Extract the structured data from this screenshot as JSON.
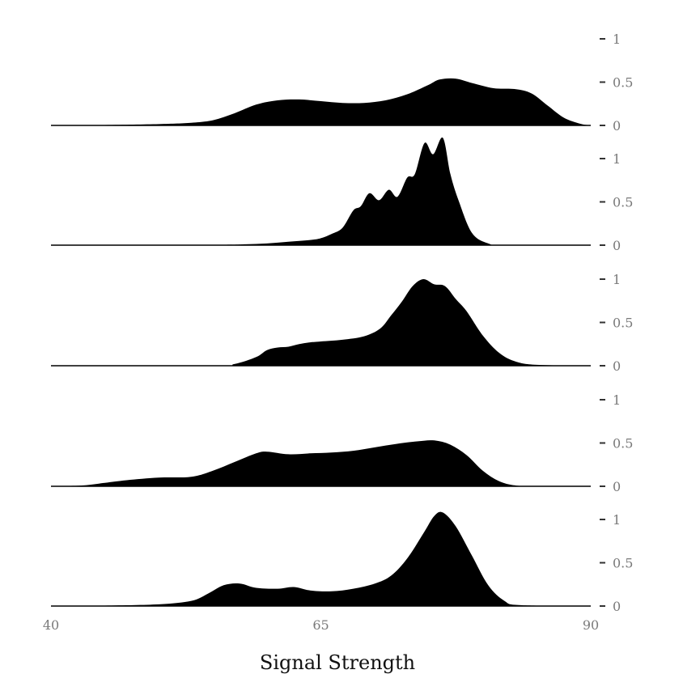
{
  "chart_data": {
    "type": "area",
    "subtype": "stacked-density-panels",
    "xlabel": "Signal Strength",
    "xlim": [
      40,
      90
    ],
    "x_ticks": [
      40,
      65,
      90
    ],
    "y_ticks": [
      0,
      0.5,
      1
    ],
    "ylim": [
      0,
      1.1
    ],
    "fill_color": "#000000",
    "tick_color": "#7a7a7a",
    "grid": false,
    "legend": "none",
    "panels": [
      {
        "points": [
          [
            40,
            0.0
          ],
          [
            45,
            0.005
          ],
          [
            50,
            0.015
          ],
          [
            53,
            0.03
          ],
          [
            55,
            0.06
          ],
          [
            57,
            0.14
          ],
          [
            59,
            0.24
          ],
          [
            61,
            0.29
          ],
          [
            63,
            0.3
          ],
          [
            65,
            0.28
          ],
          [
            67,
            0.26
          ],
          [
            69,
            0.26
          ],
          [
            71,
            0.29
          ],
          [
            73,
            0.36
          ],
          [
            75,
            0.47
          ],
          [
            76,
            0.53
          ],
          [
            77.5,
            0.54
          ],
          [
            79,
            0.49
          ],
          [
            81,
            0.43
          ],
          [
            83,
            0.42
          ],
          [
            84.5,
            0.37
          ],
          [
            86,
            0.23
          ],
          [
            87.5,
            0.09
          ],
          [
            89,
            0.02
          ],
          [
            90,
            0.0
          ]
        ]
      },
      {
        "points": [
          [
            40,
            0.0
          ],
          [
            50,
            0.005
          ],
          [
            56,
            0.005
          ],
          [
            58,
            0.01
          ],
          [
            60,
            0.02
          ],
          [
            62,
            0.04
          ],
          [
            64,
            0.06
          ],
          [
            65,
            0.08
          ],
          [
            66,
            0.13
          ],
          [
            67,
            0.2
          ],
          [
            68,
            0.4
          ],
          [
            68.7,
            0.45
          ],
          [
            69.5,
            0.6
          ],
          [
            70.4,
            0.52
          ],
          [
            71.3,
            0.64
          ],
          [
            72.1,
            0.56
          ],
          [
            73,
            0.78
          ],
          [
            73.7,
            0.82
          ],
          [
            74.6,
            1.18
          ],
          [
            75.4,
            1.05
          ],
          [
            76.3,
            1.24
          ],
          [
            77,
            0.82
          ],
          [
            77.8,
            0.5
          ],
          [
            79,
            0.14
          ],
          [
            80.5,
            0.02
          ],
          [
            82,
            0.0
          ],
          [
            90,
            0.0
          ]
        ]
      },
      {
        "points": [
          [
            40,
            0.0
          ],
          [
            55,
            0.0
          ],
          [
            57,
            0.02
          ],
          [
            59,
            0.1
          ],
          [
            60,
            0.18
          ],
          [
            61,
            0.21
          ],
          [
            62,
            0.22
          ],
          [
            63,
            0.25
          ],
          [
            64,
            0.27
          ],
          [
            65,
            0.28
          ],
          [
            67,
            0.3
          ],
          [
            69,
            0.34
          ],
          [
            70.5,
            0.43
          ],
          [
            71.5,
            0.58
          ],
          [
            72.5,
            0.74
          ],
          [
            73.5,
            0.92
          ],
          [
            74.5,
            1.0
          ],
          [
            75.5,
            0.94
          ],
          [
            76.5,
            0.92
          ],
          [
            77.5,
            0.77
          ],
          [
            78.5,
            0.63
          ],
          [
            80,
            0.35
          ],
          [
            81.5,
            0.15
          ],
          [
            83,
            0.05
          ],
          [
            85,
            0.01
          ],
          [
            90,
            0.0
          ]
        ]
      },
      {
        "points": [
          [
            40,
            0.0
          ],
          [
            43,
            0.01
          ],
          [
            45,
            0.04
          ],
          [
            47,
            0.07
          ],
          [
            50,
            0.1
          ],
          [
            53,
            0.11
          ],
          [
            55,
            0.18
          ],
          [
            57,
            0.28
          ],
          [
            59,
            0.38
          ],
          [
            60,
            0.4
          ],
          [
            62,
            0.37
          ],
          [
            64,
            0.38
          ],
          [
            66,
            0.39
          ],
          [
            68,
            0.41
          ],
          [
            70,
            0.45
          ],
          [
            72,
            0.49
          ],
          [
            74,
            0.52
          ],
          [
            75.5,
            0.53
          ],
          [
            77,
            0.48
          ],
          [
            78.5,
            0.36
          ],
          [
            80,
            0.18
          ],
          [
            81.5,
            0.06
          ],
          [
            83,
            0.01
          ],
          [
            85,
            0.0
          ],
          [
            90,
            0.0
          ]
        ]
      },
      {
        "points": [
          [
            40,
            0.0
          ],
          [
            45,
            0.005
          ],
          [
            50,
            0.02
          ],
          [
            53,
            0.06
          ],
          [
            54.5,
            0.14
          ],
          [
            56,
            0.24
          ],
          [
            57.5,
            0.26
          ],
          [
            59,
            0.21
          ],
          [
            61,
            0.2
          ],
          [
            62.5,
            0.22
          ],
          [
            64,
            0.18
          ],
          [
            66,
            0.17
          ],
          [
            68,
            0.2
          ],
          [
            70,
            0.26
          ],
          [
            71.5,
            0.35
          ],
          [
            73,
            0.55
          ],
          [
            74.5,
            0.84
          ],
          [
            75.5,
            1.04
          ],
          [
            76.3,
            1.08
          ],
          [
            77.5,
            0.92
          ],
          [
            79,
            0.58
          ],
          [
            80.5,
            0.24
          ],
          [
            82,
            0.06
          ],
          [
            83.5,
            0.01
          ],
          [
            90,
            0.0
          ]
        ]
      }
    ]
  }
}
